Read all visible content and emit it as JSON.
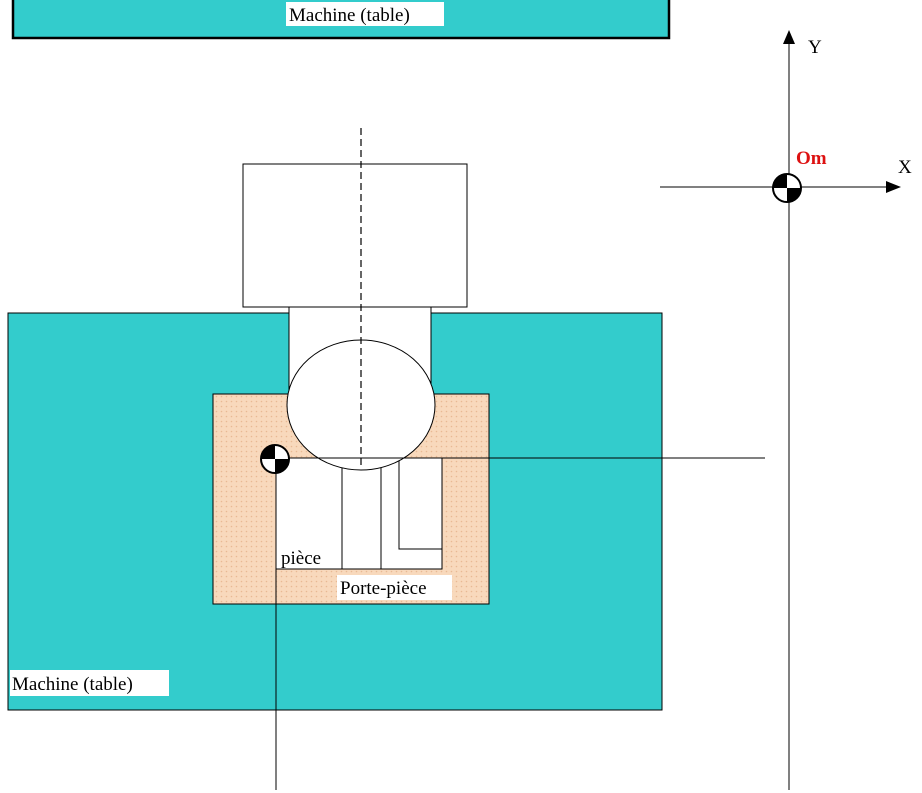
{
  "labels": {
    "table_top": "Machine (table)",
    "table_bottom": "Machine (table)",
    "piece": "pièce",
    "part_holder": "Porte-pièce",
    "axis_x": "X",
    "axis_y": "Y",
    "origin": "Om"
  },
  "colors": {
    "table_fill": "#33cccc",
    "fixture_fill": "#f8d9bc",
    "fixture_dot": "#e8b993",
    "origin_label": "#dd1111",
    "stroke": "#000000",
    "part_fill": "#ffffff"
  },
  "icons": {
    "machine_origin": "origin-target-icon",
    "part_origin": "origin-target-icon"
  }
}
